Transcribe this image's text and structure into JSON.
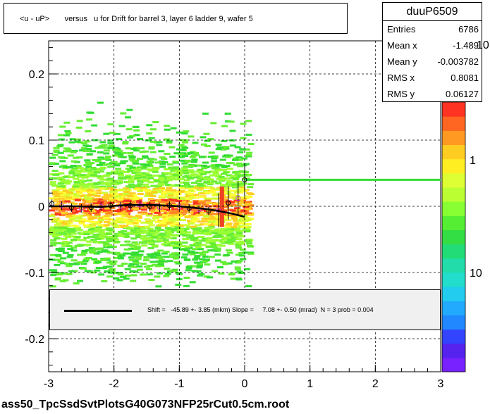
{
  "title": "<u - uP>       versus   u for Drift for barrel 3, layer 6 ladder 9, wafer 5",
  "stats": {
    "name": "duuP6509",
    "rows": [
      {
        "label": "Entries",
        "value": "6786"
      },
      {
        "label": "Mean x",
        "value": "-1.489"
      },
      {
        "label": "Mean y",
        "value": "-0.003782"
      },
      {
        "label": "RMS x",
        "value": "0.8081"
      },
      {
        "label": "RMS y",
        "value": "0.06127"
      }
    ]
  },
  "fit_legend": "Shift =   -45.89 +- 3.85 (mkm) Slope =     7.08 +- 0.50 (mrad)  N = 3 prob = 0.004",
  "footer": "ass50_TpcSsdSvtPlotsG40G073NFP25rCut0.5cm.root",
  "colorbar": {
    "labels": [
      "10",
      "1",
      "10"
    ]
  },
  "colors": {
    "fit_line": "#33dd33",
    "profile": "#000000",
    "markers": "#cc33cc"
  },
  "chart_data": {
    "type": "heatmap",
    "xlim": [
      -3,
      3
    ],
    "ylim": [
      -0.25,
      0.25
    ],
    "x_ticks": [
      "-3",
      "-2",
      "-1",
      "0",
      "1",
      "2",
      "3"
    ],
    "y_ticks": [
      "0.2",
      "0.1",
      "0",
      "-0.1",
      "-0.2"
    ],
    "grid": true,
    "profile": {
      "x": [
        -2.95,
        -2.8,
        -2.65,
        -2.5,
        -2.35,
        -2.2,
        -2.05,
        -1.9,
        -1.75,
        -1.6,
        -1.45,
        -1.3,
        -1.15,
        -1.0,
        -0.85,
        -0.7,
        -0.55,
        -0.4,
        -0.25,
        -0.1,
        0.0
      ],
      "y": [
        0.004,
        0.001,
        -0.002,
        -0.003,
        -0.002,
        0.0,
        0.001,
        0.0,
        0.001,
        0.002,
        0.0,
        -0.002,
        0.001,
        0.0,
        -0.003,
        -0.005,
        -0.007,
        -0.006,
        0.005,
        0.012,
        0.04
      ]
    },
    "fit_curve": {
      "x": [
        -3.0,
        -2.6,
        -2.2,
        -1.8,
        -1.4,
        -1.0,
        -0.8,
        -0.6,
        -0.4,
        -0.2,
        0.0
      ],
      "y": [
        0.0,
        0.0,
        -0.001,
        0.002,
        0.002,
        0.0,
        -0.002,
        -0.004,
        -0.007,
        -0.011,
        -0.016
      ]
    },
    "fit_line": {
      "x": [
        0.0,
        3.0
      ],
      "y": [
        0.04,
        0.04
      ]
    }
  }
}
